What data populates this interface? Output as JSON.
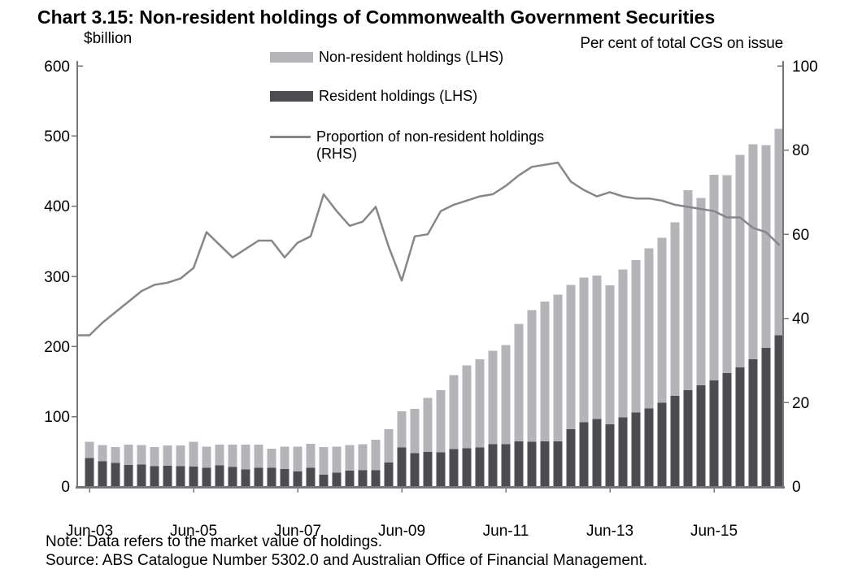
{
  "title": "Chart 3.15: Non-resident holdings of Commonwealth Government Securities",
  "left_axis": {
    "title": "$billion",
    "ticks": [
      "600",
      "500",
      "400",
      "300",
      "200",
      "100",
      "0"
    ]
  },
  "right_axis": {
    "title": "Per cent of total CGS on issue",
    "ticks": [
      "100",
      "80",
      "60",
      "40",
      "20",
      "0"
    ]
  },
  "x_axis": {
    "tick_labels": [
      "Jun-03",
      "Jun-05",
      "Jun-07",
      "Jun-09",
      "Jun-11",
      "Jun-13",
      "Jun-15"
    ]
  },
  "legend": {
    "items": [
      {
        "swatch": "non-resident-bar-swatch",
        "label": "Non-resident holdings (LHS)"
      },
      {
        "swatch": "resident-bar-swatch",
        "label": "Resident holdings (LHS)"
      },
      {
        "swatch": "proportion-line-swatch",
        "label": "Proportion of non-resident holdings (RHS)"
      }
    ]
  },
  "note": "Note: Data refers to the market value of holdings.",
  "source": "Source: ABS Catalogue Number 5302.0 and Australian Office of Financial Management.",
  "colors": {
    "non_resident_bar": "#b5b5b9",
    "resident_bar": "#4c4c51",
    "proportion_line": "#87878b",
    "axis": "#77777b"
  },
  "chart_data": {
    "type": "bar",
    "subtype": "stacked-bars-with-line",
    "title": "Chart 3.15: Non-resident holdings of Commonwealth Government Securities",
    "xlabel": "",
    "ylabel_left": "$billion",
    "ylabel_right": "Per cent of total CGS on issue",
    "left_range": [
      0,
      600
    ],
    "right_range": [
      0,
      100
    ],
    "grid": false,
    "legend_position": "top",
    "categories": [
      "Jun-03",
      "Sep-03",
      "Dec-03",
      "Mar-04",
      "Jun-04",
      "Sep-04",
      "Dec-04",
      "Mar-05",
      "Jun-05",
      "Sep-05",
      "Dec-05",
      "Mar-06",
      "Jun-06",
      "Sep-06",
      "Dec-06",
      "Mar-07",
      "Jun-07",
      "Sep-07",
      "Dec-07",
      "Mar-08",
      "Jun-08",
      "Sep-08",
      "Dec-08",
      "Mar-09",
      "Jun-09",
      "Sep-09",
      "Dec-09",
      "Mar-10",
      "Jun-10",
      "Sep-10",
      "Dec-10",
      "Mar-11",
      "Jun-11",
      "Sep-11",
      "Dec-11",
      "Mar-12",
      "Jun-12",
      "Sep-12",
      "Dec-12",
      "Mar-13",
      "Jun-13",
      "Sep-13",
      "Dec-13",
      "Mar-14",
      "Jun-14",
      "Sep-14",
      "Dec-14",
      "Mar-15",
      "Jun-15",
      "Sep-15",
      "Dec-15",
      "Mar-16",
      "Jun-16",
      "Sep-16"
    ],
    "series": [
      {
        "name": "Resident holdings (LHS)",
        "type": "bar",
        "stack": "cgs",
        "axis": "left",
        "values": [
          41,
          36.5,
          34,
          31.5,
          32,
          29.5,
          30,
          29.5,
          29,
          27.5,
          30.5,
          28.5,
          25,
          27.5,
          27,
          25.5,
          22,
          27,
          17.5,
          20,
          23,
          24,
          24,
          35,
          56,
          48,
          50,
          49,
          54,
          55,
          56,
          61,
          61,
          65,
          64,
          65,
          65,
          82,
          92,
          97,
          89,
          99,
          106,
          112,
          120,
          130,
          138,
          145,
          152,
          162,
          170,
          182,
          198,
          216
        ]
      },
      {
        "name": "Non-resident holdings (LHS)",
        "type": "bar",
        "stack": "cgs",
        "axis": "left",
        "values": [
          23.5,
          23,
          22.5,
          29,
          27.5,
          27,
          29,
          29.5,
          35.5,
          30,
          30,
          32,
          35.5,
          33,
          27.5,
          32,
          35.5,
          34.5,
          39,
          37.5,
          36.5,
          37,
          43,
          47,
          52,
          63,
          77,
          89,
          105,
          118,
          126,
          133,
          141,
          167,
          188,
          199,
          209,
          206,
          206,
          204,
          198,
          211,
          217,
          228,
          235,
          247,
          285,
          267,
          293,
          282,
          303,
          306,
          289,
          294
        ]
      },
      {
        "name": "Proportion of non-resident holdings (RHS)",
        "type": "line",
        "axis": "right",
        "values": [
          36,
          39,
          41.5,
          44,
          46.5,
          48,
          48.5,
          49.5,
          52,
          60.5,
          57.5,
          54.5,
          56.5,
          58.5,
          58.5,
          54.5,
          58,
          59.5,
          69.5,
          65.5,
          62,
          63,
          66.5,
          57,
          49,
          59.5,
          60,
          65.5,
          67,
          68,
          69,
          69.5,
          71.5,
          74,
          76,
          76.5,
          77,
          72.5,
          70.5,
          69,
          70,
          69,
          68.5,
          68.5,
          68,
          67,
          66.5,
          66,
          65.5,
          64,
          64,
          61.5,
          60.5,
          57.5
        ]
      }
    ]
  }
}
